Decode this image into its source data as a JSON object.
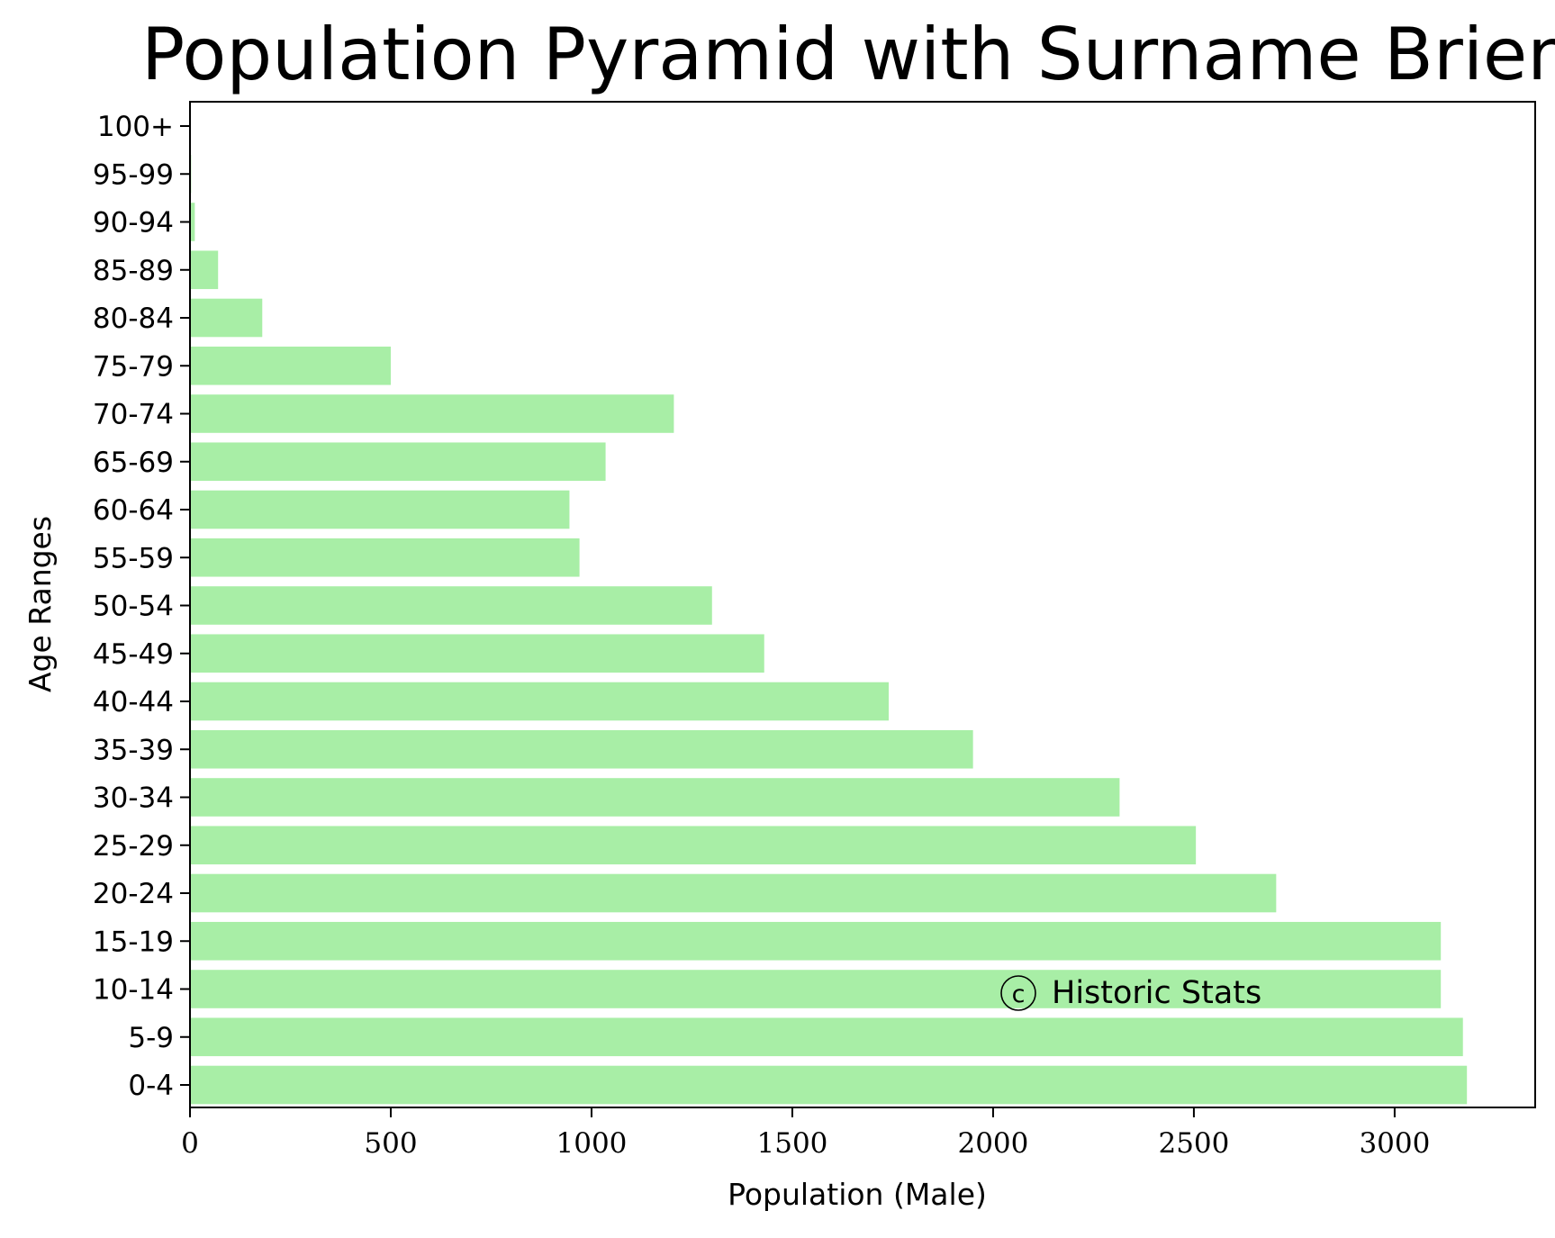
{
  "chart_data": {
    "type": "bar",
    "orientation": "horizontal",
    "title": "Population Pyramid with Surname Brien",
    "xlabel": "Population (Male)",
    "ylabel": "Age Ranges",
    "categories": [
      "0-4",
      "5-9",
      "10-14",
      "15-19",
      "20-24",
      "25-29",
      "30-34",
      "35-39",
      "40-44",
      "45-49",
      "50-54",
      "55-59",
      "60-64",
      "65-69",
      "70-74",
      "75-79",
      "80-84",
      "85-89",
      "90-94",
      "95-99",
      "100+"
    ],
    "values": [
      3180,
      3170,
      3115,
      3115,
      2705,
      2505,
      2315,
      1950,
      1740,
      1430,
      1300,
      970,
      945,
      1035,
      1205,
      500,
      180,
      70,
      12,
      3,
      0
    ],
    "xlim": [
      0,
      3350
    ],
    "xticks": [
      0,
      500,
      1000,
      1500,
      2000,
      2500,
      3000
    ],
    "xtick_labels": [
      "0",
      "500",
      "1000",
      "1500",
      "2000",
      "2500",
      "3000"
    ],
    "bar_color": "#a8eea6",
    "grid": false,
    "watermark": {
      "symbol": "c",
      "text": "Historic Stats"
    }
  }
}
